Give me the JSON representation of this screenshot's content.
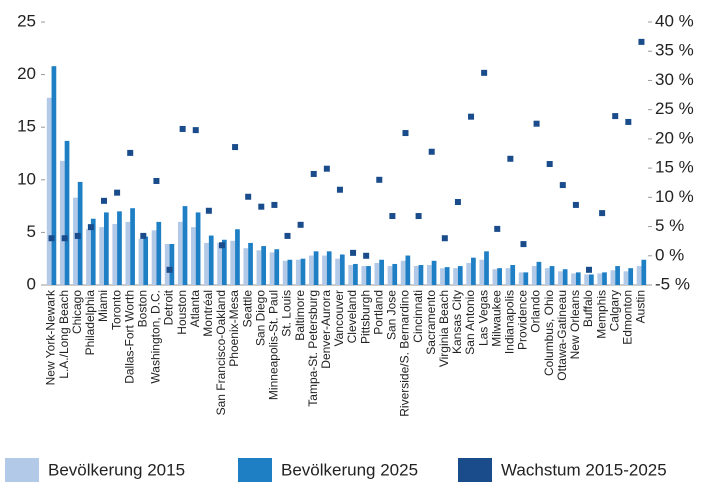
{
  "chart_data": {
    "type": "bar",
    "categories": [
      "New York-Newark",
      "L.A./Long Beach",
      "Chicago",
      "Philadelphia",
      "Miami",
      "Toronto",
      "Dallas-Fort Worth",
      "Boston",
      "Washington, D.C.",
      "Detroit",
      "Houston",
      "Atlanta",
      "Montréal",
      "San Francisco-Oakland",
      "Phoenix-Mesa",
      "Seattle",
      "San Diego",
      "Minneapolis-St. Paul",
      "St. Louis",
      "Baltimore",
      "Tampa-St. Petersburg",
      "Denver-Aurora",
      "Vancouver",
      "Cleveland",
      "Pittsburgh",
      "Portland",
      "San Jose",
      "Riverside/S. Bernardino",
      "Cincinnati",
      "Sacramento",
      "Virginia Beach",
      "Kansas City",
      "San Antonio",
      "Las Vegas",
      "Milwaukee",
      "Indianapolis",
      "Providence",
      "Orlando",
      "Columbus, Ohio",
      "Ottawa-Gatineau",
      "New Orleans",
      "Buffalo",
      "Memphis",
      "Calgary",
      "Edmonton",
      "Austin"
    ],
    "series": [
      {
        "name": "Bevölkerung 2015",
        "type": "bar",
        "color": "#b3c9e8",
        "values": [
          17.8,
          11.8,
          8.3,
          5.3,
          5.5,
          5.8,
          6.0,
          4.4,
          5.2,
          3.9,
          6.0,
          5.5,
          4.0,
          4.0,
          4.2,
          3.5,
          3.3,
          3.1,
          2.3,
          2.4,
          2.8,
          2.8,
          2.5,
          1.9,
          1.8,
          2.1,
          1.8,
          2.3,
          1.8,
          1.9,
          1.6,
          1.6,
          2.1,
          2.4,
          1.5,
          1.6,
          1.2,
          1.8,
          1.6,
          1.3,
          1.1,
          1.0,
          1.1,
          1.4,
          1.3,
          1.8
        ]
      },
      {
        "name": "Bevölkerung 2025",
        "type": "bar",
        "color": "#1f7fc4",
        "values": [
          20.8,
          13.7,
          9.8,
          6.3,
          6.9,
          7.0,
          7.3,
          4.6,
          6.0,
          3.9,
          7.5,
          6.9,
          4.7,
          4.3,
          5.3,
          4.0,
          3.7,
          3.4,
          2.4,
          2.5,
          3.2,
          3.2,
          2.9,
          2.0,
          1.8,
          2.4,
          2.0,
          2.8,
          1.9,
          2.3,
          1.7,
          1.8,
          2.6,
          3.2,
          1.6,
          1.9,
          1.2,
          2.2,
          1.8,
          1.5,
          1.2,
          1.0,
          1.2,
          1.8,
          1.6,
          2.4
        ]
      },
      {
        "name": "Wachstum 2015-2025",
        "type": "scatter",
        "axis": "y2",
        "color": "#1a4c8c",
        "values": [
          3.0,
          3.0,
          3.4,
          4.9,
          9.4,
          10.8,
          17.6,
          3.4,
          12.8,
          -2.4,
          21.7,
          21.5,
          7.7,
          1.8,
          18.6,
          10.1,
          8.4,
          8.7,
          3.4,
          5.3,
          14.0,
          14.9,
          11.3,
          0.5,
          0.0,
          13.0,
          6.8,
          21.0,
          6.8,
          17.8,
          3.0,
          9.2,
          23.8,
          31.3,
          4.6,
          16.6,
          2.0,
          22.6,
          15.7,
          12.1,
          8.7,
          -2.4,
          7.3,
          23.9,
          22.9,
          36.6
        ]
      }
    ],
    "ylim": [
      0,
      25
    ],
    "yticks": [
      0,
      5,
      10,
      15,
      20,
      25
    ],
    "y2lim": [
      -5,
      40
    ],
    "y2ticks": [
      {
        "value": 40,
        "label": "40 %"
      },
      {
        "value": 35,
        "label": "35 %"
      },
      {
        "value": 30,
        "label": "30 %"
      },
      {
        "value": 25,
        "label": "25 %"
      },
      {
        "value": 20,
        "label": "20 %"
      },
      {
        "value": 15,
        "label": "15 %"
      },
      {
        "value": 10,
        "label": "10 %"
      },
      {
        "value": 5,
        "label": "5 %"
      },
      {
        "value": 0,
        "label": "0 %"
      },
      {
        "value": -5,
        "label": "-5 %"
      }
    ],
    "grid": false,
    "legend": "bottom"
  }
}
